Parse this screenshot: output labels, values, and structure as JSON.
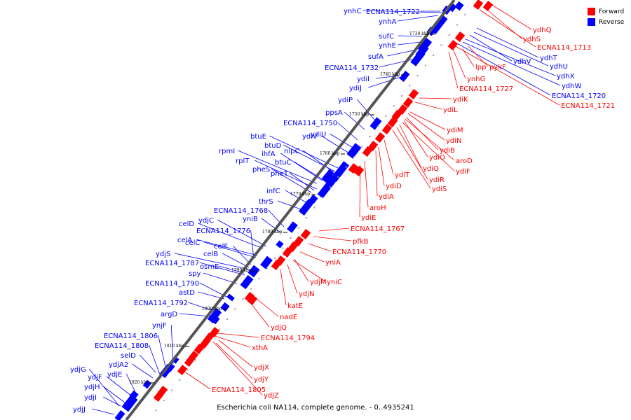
{
  "legend": {
    "forward_label": "Forward",
    "reverse_label": "Reverse",
    "forward_color": "#ff0000",
    "reverse_color": "#0000ff"
  },
  "caption": "Escherichia coli NA114, complete genome. - 0..4935241",
  "axis": {
    "ticks": [
      "1730 kbp",
      "1740 kbp",
      "1750 kbp",
      "1760 kbp",
      "1770 kbp",
      "1780 kbp",
      "1790 kbp",
      "1800 kbp",
      "1810 kbp",
      "1820 kbp"
    ]
  },
  "reverse_genes": [
    "ynhC",
    "ECNA114_1722",
    "ynhA",
    "sufC",
    "ynhE",
    "sufA",
    "ECNA114_1732",
    "ydiI",
    "ydiJ",
    "ydiP",
    "ppsA",
    "ECNA114_1750",
    "ydiU",
    "ydiV",
    "btuE",
    "btuD",
    "nlpC",
    "rpmI",
    "ihfA",
    "rplT",
    "btuC",
    "pheS",
    "pheT",
    "infC",
    "thrS",
    "ECNA114_1768",
    "yniB",
    "celD",
    "ydjC",
    "ECNA114_1776",
    "celA",
    "celC",
    "celF",
    "celB",
    "ydjS",
    "osmE",
    "ECNA114_1787",
    "spy",
    "ECNA114_1790",
    "astD",
    "ECNA114_1792",
    "argD",
    "ynjF",
    "ECNA114_1806",
    "ECNA114_1808",
    "selD",
    "ydjA2",
    "ydjG",
    "ydjE",
    "ydjF",
    "ydjH",
    "ydjI",
    "ydjJ"
  ],
  "forward_genes_right": [
    "ydhQ",
    "ydhS",
    "ECNA114_1713",
    "ydhT",
    "ydhU",
    "ydhV",
    "ydhX",
    "ydhW",
    "ECNA114_1720",
    "ECNA114_1721"
  ],
  "forward_genes": [
    "lpp",
    "pykF",
    "ynhG",
    "ECNA114_1727",
    "ydiK",
    "ydiL",
    "ydiM",
    "ydiN",
    "ydiB",
    "ydiO",
    "aroD",
    "ydiQ",
    "ydiF",
    "ydiT",
    "ydiR",
    "ydiS",
    "ydiD",
    "ydiA",
    "aroH",
    "ydiE",
    "ECNA114_1767",
    "pfkB",
    "ECNA114_1770",
    "yniA",
    "ydjM",
    "yniC",
    "ydjN",
    "katE",
    "nadE",
    "ydjQ",
    "ECNA114_1794",
    "xthA",
    "ydjX",
    "ydjY",
    "ECNA114_1805",
    "ydjZ"
  ]
}
